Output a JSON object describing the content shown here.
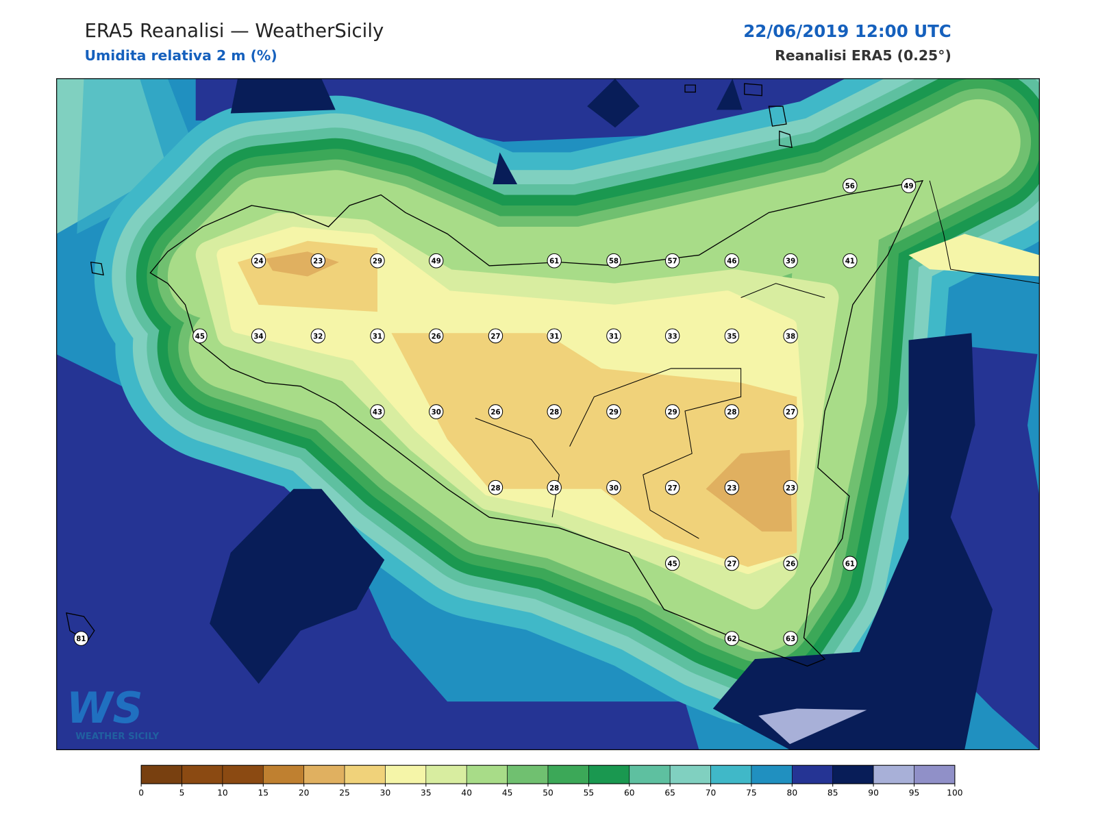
{
  "header": {
    "title": "ERA5 Reanalisi — WeatherSicily",
    "subtitle": "Umidita relativa 2 m (%)",
    "datetime": "22/06/2019 12:00 UTC",
    "source": "Reanalisi ERA5 (0.25°)"
  },
  "stations": [
    24,
    23,
    29,
    49,
    61,
    58,
    57,
    46,
    39,
    41,
    56,
    49,
    45,
    34,
    32,
    31,
    26,
    27,
    31,
    31,
    33,
    35,
    38,
    43,
    30,
    26,
    28,
    29,
    29,
    28,
    27,
    28,
    28,
    30,
    27,
    23,
    23,
    45,
    27,
    26,
    61,
    81,
    62,
    63
  ],
  "logo": {
    "mark": "WS",
    "name": "WEATHER SICILY"
  },
  "colorbar": {
    "ticks": [
      0,
      5,
      10,
      15,
      20,
      25,
      30,
      35,
      40,
      45,
      50,
      55,
      60,
      65,
      70,
      75,
      80,
      85,
      90,
      95,
      100
    ],
    "colors": [
      "#784010",
      "#8b4a12",
      "#8b4a12",
      "#bf8030",
      "#e0b060",
      "#f0d27a",
      "#f5f5a8",
      "#d8eda0",
      "#a8dc88",
      "#70c070",
      "#3ca858",
      "#1a9850",
      "#5ec0a0",
      "#80d0c0",
      "#40b8c8",
      "#2090c0",
      "#253494",
      "#081d58",
      "#a8b0d8",
      "#9090c8"
    ]
  }
}
